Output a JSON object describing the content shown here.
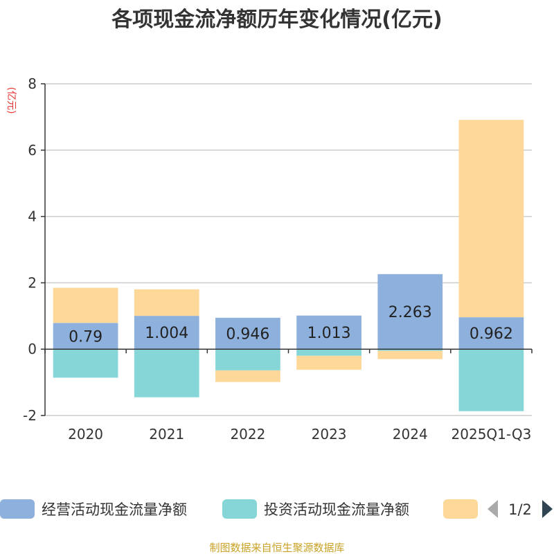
{
  "chart_data": {
    "type": "bar",
    "stacked": true,
    "title": "各项现金流净额历年变化情况(亿元)",
    "ylabel": "(亿元)",
    "categories": [
      "2020",
      "2021",
      "2022",
      "2023",
      "2024",
      "2025Q1-Q3"
    ],
    "ylim": [
      -2,
      8
    ],
    "yticks": [
      -2,
      0,
      2,
      4,
      6,
      8
    ],
    "grid": true,
    "legend_position": "bottom",
    "series": [
      {
        "name": "经营活动现金流量净额",
        "color": "#8eb0dc",
        "values": [
          0.79,
          1.004,
          0.946,
          1.013,
          2.263,
          0.962
        ],
        "labels": [
          "0.79",
          "1.004",
          "0.946",
          "1.013",
          "2.263",
          "0.962"
        ]
      },
      {
        "name": "投资活动现金流量净额",
        "color": "#86d6d8",
        "values": [
          -0.86,
          -1.45,
          -0.64,
          -0.2,
          -0.05,
          -1.87
        ]
      },
      {
        "name": "",
        "color": "#fdd898",
        "values": [
          1.06,
          0.8,
          -0.35,
          -0.42,
          -0.25,
          5.95
        ]
      }
    ]
  },
  "legend": {
    "pager": "1/2"
  },
  "source": "制图数据来自恒生聚源数据库"
}
